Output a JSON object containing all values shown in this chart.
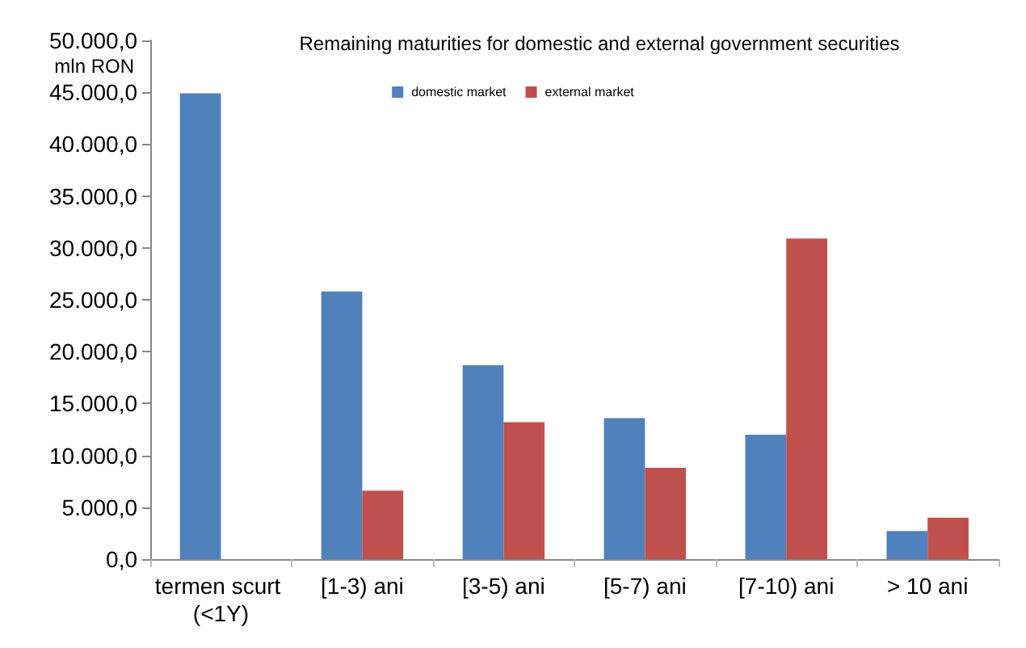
{
  "chart_data": {
    "type": "bar",
    "title": "Remaining maturities for domestic and external government securities",
    "ylabel": "mln RON",
    "categories": [
      "termen scurt (<1Y)",
      "[1-3) ani",
      "[3-5) ani",
      "[5-7) ani",
      "[7-10) ani",
      "> 10 ani"
    ],
    "series": [
      {
        "name": "domestic market",
        "color": "#4f81bd",
        "values": [
          44900,
          25800,
          18700,
          13600,
          12000,
          2700
        ]
      },
      {
        "name": "external market",
        "color": "#c0504d",
        "values": [
          null,
          6600,
          13200,
          8800,
          30900,
          4000
        ]
      }
    ],
    "ylim": [
      0,
      50000
    ],
    "yticks": [
      {
        "value": 0,
        "label": "0,0"
      },
      {
        "value": 5000,
        "label": "5.000,0"
      },
      {
        "value": 10000,
        "label": "10.000,0"
      },
      {
        "value": 15000,
        "label": "15.000,0"
      },
      {
        "value": 20000,
        "label": "20.000,0"
      },
      {
        "value": 25000,
        "label": "25.000,0"
      },
      {
        "value": 30000,
        "label": "30.000,0"
      },
      {
        "value": 35000,
        "label": "35.000,0"
      },
      {
        "value": 40000,
        "label": "40.000,0"
      },
      {
        "value": 45000,
        "label": "45.000,0"
      },
      {
        "value": 50000,
        "label": "50.000,0"
      }
    ],
    "grid": false,
    "legend": "top"
  }
}
